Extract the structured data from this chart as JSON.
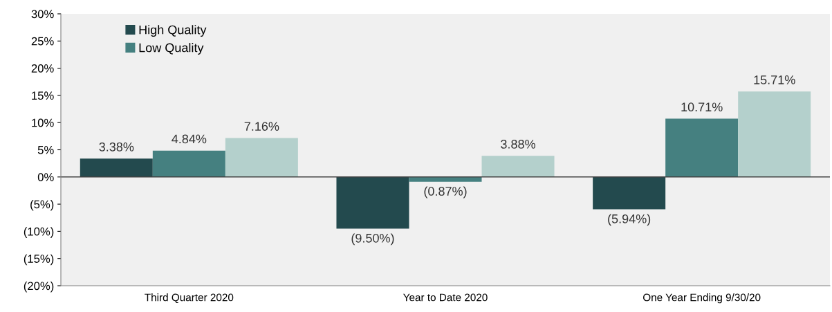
{
  "chart_data": {
    "type": "bar",
    "categories": [
      "Third Quarter 2020",
      "Year to Date 2020",
      "One Year Ending 9/30/20"
    ],
    "series": [
      {
        "name": "High Quality",
        "color": "#234a4e",
        "values": [
          3.38,
          -9.5,
          -5.94
        ],
        "value_labels": [
          "3.38%",
          "(9.50%)",
          "(5.94%)"
        ]
      },
      {
        "name": "Low Quality",
        "color": "#458080",
        "values": [
          4.84,
          -0.87,
          10.71
        ],
        "value_labels": [
          "4.84%",
          "(0.87%)",
          "10.71%"
        ]
      },
      {
        "color": "#b4d0cc",
        "values": [
          7.16,
          3.88,
          15.71
        ],
        "value_labels": [
          "7.16%",
          "3.88%",
          "15.71%"
        ]
      }
    ],
    "ylim": [
      -20,
      30
    ],
    "yticks": [
      {
        "value": -20,
        "label": "(20%)"
      },
      {
        "value": -15,
        "label": "(15%)"
      },
      {
        "value": -10,
        "label": "(10%)"
      },
      {
        "value": -5,
        "label": "(5%)"
      },
      {
        "value": 0,
        "label": "0%"
      },
      {
        "value": 5,
        "label": "5%"
      },
      {
        "value": 10,
        "label": "10%"
      },
      {
        "value": 15,
        "label": "15%"
      },
      {
        "value": 20,
        "label": "20%"
      },
      {
        "value": 25,
        "label": "25%"
      },
      {
        "value": 30,
        "label": "30%"
      }
    ],
    "ref_lines": [
      {
        "axis": "y",
        "value": 0,
        "color": "#404040"
      }
    ],
    "grid": false,
    "legend": "top left"
  }
}
